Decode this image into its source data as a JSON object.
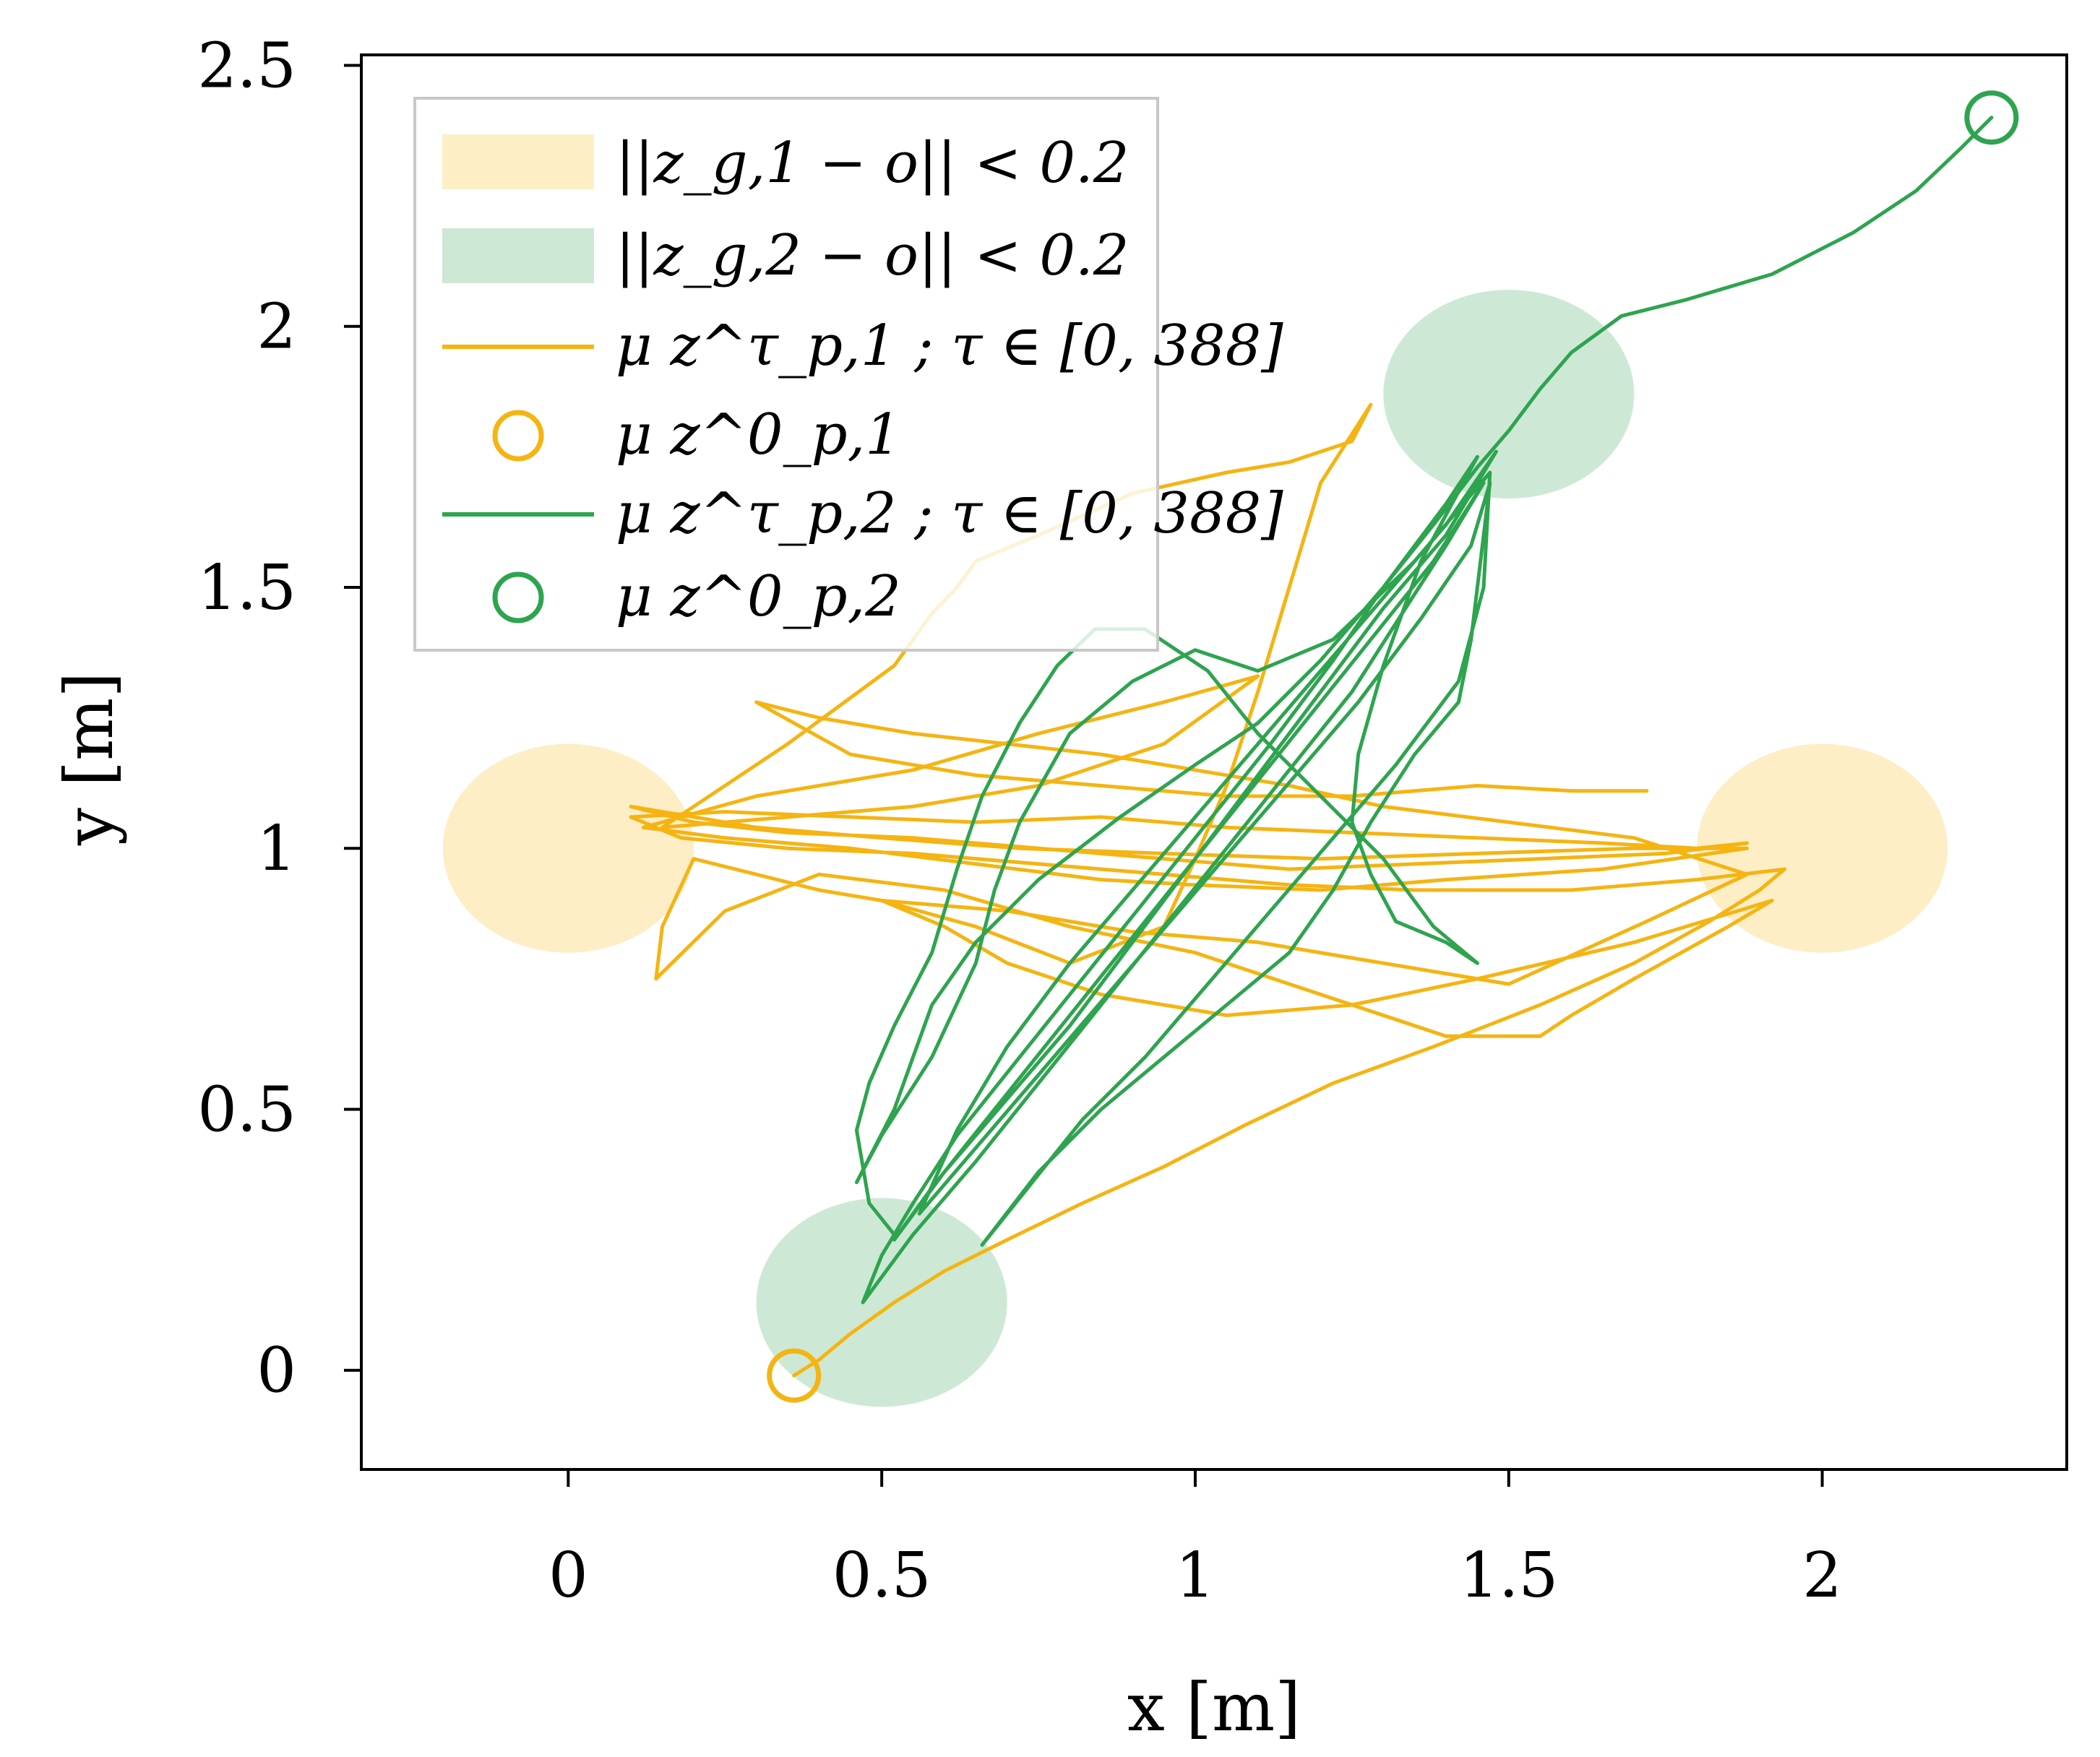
{
  "chart_data": {
    "type": "scatter",
    "title": "",
    "xlabel": "x [m]",
    "ylabel": "y [m]",
    "xlim": [
      -0.33,
      2.39
    ],
    "ylim": [
      -0.19,
      2.52
    ],
    "xticks": [
      0,
      0.5,
      1,
      1.5,
      2
    ],
    "xtick_labels": [
      "0",
      "0.5",
      "1",
      "1.5",
      "2"
    ],
    "yticks": [
      0,
      0.5,
      1,
      1.5,
      2,
      2.5
    ],
    "ytick_labels": [
      "0",
      "0.5",
      "1",
      "1.5",
      "2",
      "2.5"
    ],
    "grid": false,
    "legend_position": "top-left",
    "colors": {
      "orange": "#f5b412",
      "green": "#2ea44f",
      "orange_fill": "#fdeec6",
      "green_fill": "#cde9d5"
    },
    "regions": [
      {
        "name": "goal-region-1-left",
        "group": "orange",
        "center": [
          0.0,
          1.0
        ],
        "radius": 0.2
      },
      {
        "name": "goal-region-1-right",
        "group": "orange",
        "center": [
          2.0,
          1.0
        ],
        "radius": 0.2
      },
      {
        "name": "goal-region-2-bottom",
        "group": "green",
        "center": [
          0.5,
          0.13
        ],
        "radius": 0.2
      },
      {
        "name": "goal-region-2-top",
        "group": "green",
        "center": [
          1.5,
          1.87
        ],
        "radius": 0.2
      }
    ],
    "start_points": [
      {
        "name": "orange-start-marker",
        "group": "orange",
        "x": 0.36,
        "y": -0.01
      },
      {
        "name": "green-start-marker",
        "group": "green",
        "x": 2.27,
        "y": 2.4
      }
    ],
    "series": [
      {
        "name": "orange-trajectory-path",
        "group": "orange",
        "points": [
          [
            0.36,
            -0.01
          ],
          [
            0.4,
            0.02
          ],
          [
            0.45,
            0.07
          ],
          [
            0.52,
            0.13
          ],
          [
            0.6,
            0.19
          ],
          [
            0.7,
            0.25
          ],
          [
            0.82,
            0.32
          ],
          [
            0.95,
            0.39
          ],
          [
            1.08,
            0.47
          ],
          [
            1.22,
            0.55
          ],
          [
            1.38,
            0.62
          ],
          [
            1.55,
            0.7
          ],
          [
            1.7,
            0.78
          ],
          [
            1.82,
            0.86
          ],
          [
            1.9,
            0.92
          ],
          [
            1.94,
            0.96
          ],
          [
            1.8,
            0.94
          ],
          [
            1.6,
            0.92
          ],
          [
            1.35,
            0.92
          ],
          [
            1.15,
            0.93
          ],
          [
            0.95,
            0.95
          ],
          [
            0.75,
            0.97
          ],
          [
            0.55,
            0.99
          ],
          [
            0.35,
            1.0
          ],
          [
            0.18,
            1.02
          ],
          [
            0.1,
            1.06
          ],
          [
            0.25,
            1.07
          ],
          [
            0.45,
            1.06
          ],
          [
            0.65,
            1.05
          ],
          [
            0.85,
            1.06
          ],
          [
            1.05,
            1.04
          ],
          [
            1.25,
            1.03
          ],
          [
            1.45,
            1.02
          ],
          [
            1.65,
            1.01
          ],
          [
            1.8,
            1.0
          ],
          [
            1.88,
            1.01
          ],
          [
            1.75,
            0.99
          ],
          [
            1.55,
            0.98
          ],
          [
            1.35,
            0.97
          ],
          [
            1.15,
            0.96
          ],
          [
            0.95,
            0.98
          ],
          [
            0.75,
            1.0
          ],
          [
            0.55,
            1.02
          ],
          [
            0.35,
            1.03
          ],
          [
            0.2,
            1.05
          ],
          [
            0.1,
            1.08
          ],
          [
            0.3,
            1.04
          ],
          [
            0.5,
            1.02
          ],
          [
            0.72,
            1.0
          ],
          [
            0.95,
            0.99
          ],
          [
            1.2,
            0.98
          ],
          [
            1.45,
            0.99
          ],
          [
            1.7,
            1.0
          ],
          [
            1.88,
            1.0
          ],
          [
            1.65,
            0.96
          ],
          [
            1.4,
            0.94
          ],
          [
            1.2,
            0.92
          ],
          [
            1.0,
            0.93
          ],
          [
            0.85,
            0.94
          ],
          [
            0.65,
            0.97
          ],
          [
            0.45,
            1.0
          ],
          [
            0.25,
            1.02
          ],
          [
            0.12,
            1.04
          ],
          [
            0.3,
            1.1
          ],
          [
            0.55,
            1.15
          ],
          [
            0.75,
            1.22
          ],
          [
            0.95,
            1.28
          ],
          [
            1.1,
            1.33
          ],
          [
            0.95,
            1.2
          ],
          [
            0.75,
            1.12
          ],
          [
            0.55,
            1.08
          ],
          [
            0.35,
            1.06
          ],
          [
            0.15,
            1.04
          ],
          [
            0.35,
            1.2
          ],
          [
            0.52,
            1.35
          ],
          [
            0.58,
            1.45
          ],
          [
            0.62,
            1.5
          ],
          [
            0.65,
            1.55
          ],
          [
            0.75,
            1.6
          ],
          [
            0.9,
            1.68
          ],
          [
            1.05,
            1.72
          ],
          [
            1.15,
            1.74
          ],
          [
            1.25,
            1.78
          ],
          [
            1.28,
            1.85
          ],
          [
            1.2,
            1.7
          ],
          [
            1.15,
            1.5
          ],
          [
            1.1,
            1.3
          ],
          [
            1.05,
            1.12
          ],
          [
            1.0,
            0.98
          ],
          [
            0.95,
            0.85
          ],
          [
            0.8,
            0.78
          ],
          [
            0.65,
            0.85
          ],
          [
            0.5,
            0.9
          ],
          [
            0.4,
            0.92
          ],
          [
            0.3,
            0.95
          ],
          [
            0.2,
            0.98
          ],
          [
            0.15,
            0.85
          ],
          [
            0.14,
            0.75
          ],
          [
            0.25,
            0.88
          ],
          [
            0.4,
            0.95
          ],
          [
            0.6,
            0.92
          ],
          [
            0.8,
            0.85
          ],
          [
            1.0,
            0.8
          ],
          [
            1.2,
            0.72
          ],
          [
            1.4,
            0.64
          ],
          [
            1.55,
            0.64
          ],
          [
            1.6,
            0.68
          ],
          [
            1.7,
            0.75
          ],
          [
            1.85,
            0.85
          ],
          [
            1.92,
            0.9
          ],
          [
            1.7,
            0.82
          ],
          [
            1.45,
            0.75
          ],
          [
            1.25,
            0.7
          ],
          [
            1.05,
            0.68
          ],
          [
            0.85,
            0.72
          ],
          [
            0.7,
            0.78
          ],
          [
            0.6,
            0.85
          ],
          [
            0.5,
            0.9
          ],
          [
            0.7,
            0.88
          ],
          [
            0.9,
            0.84
          ],
          [
            1.1,
            0.82
          ],
          [
            1.3,
            0.78
          ],
          [
            1.5,
            0.74
          ],
          [
            1.72,
            0.86
          ],
          [
            1.88,
            0.95
          ],
          [
            1.7,
            1.02
          ],
          [
            1.5,
            1.05
          ],
          [
            1.3,
            1.08
          ],
          [
            1.15,
            1.12
          ],
          [
            1.0,
            1.15
          ],
          [
            0.85,
            1.18
          ],
          [
            0.7,
            1.2
          ],
          [
            0.55,
            1.22
          ],
          [
            0.4,
            1.25
          ],
          [
            0.3,
            1.28
          ],
          [
            0.45,
            1.18
          ],
          [
            0.65,
            1.14
          ],
          [
            0.85,
            1.12
          ],
          [
            1.05,
            1.1
          ],
          [
            1.25,
            1.1
          ],
          [
            1.45,
            1.12
          ],
          [
            1.6,
            1.11
          ],
          [
            1.72,
            1.11
          ]
        ]
      },
      {
        "name": "green-trajectory-path",
        "group": "green",
        "points": [
          [
            2.27,
            2.4
          ],
          [
            2.22,
            2.34
          ],
          [
            2.15,
            2.26
          ],
          [
            2.05,
            2.18
          ],
          [
            1.92,
            2.1
          ],
          [
            1.78,
            2.05
          ],
          [
            1.68,
            2.02
          ],
          [
            1.6,
            1.95
          ],
          [
            1.55,
            1.88
          ],
          [
            1.5,
            1.8
          ],
          [
            1.45,
            1.73
          ],
          [
            1.38,
            1.62
          ],
          [
            1.3,
            1.5
          ],
          [
            1.22,
            1.36
          ],
          [
            1.12,
            1.2
          ],
          [
            1.02,
            1.05
          ],
          [
            0.92,
            0.9
          ],
          [
            0.82,
            0.75
          ],
          [
            0.72,
            0.6
          ],
          [
            0.62,
            0.45
          ],
          [
            0.55,
            0.32
          ],
          [
            0.5,
            0.22
          ],
          [
            0.47,
            0.13
          ],
          [
            0.55,
            0.26
          ],
          [
            0.65,
            0.4
          ],
          [
            0.75,
            0.55
          ],
          [
            0.85,
            0.7
          ],
          [
            0.95,
            0.85
          ],
          [
            1.05,
            1.0
          ],
          [
            1.15,
            1.15
          ],
          [
            1.25,
            1.3
          ],
          [
            1.33,
            1.45
          ],
          [
            1.4,
            1.58
          ],
          [
            1.46,
            1.7
          ],
          [
            1.38,
            1.55
          ],
          [
            1.28,
            1.4
          ],
          [
            1.18,
            1.25
          ],
          [
            1.08,
            1.1
          ],
          [
            0.98,
            0.95
          ],
          [
            0.88,
            0.8
          ],
          [
            0.78,
            0.65
          ],
          [
            0.68,
            0.5
          ],
          [
            0.58,
            0.35
          ],
          [
            0.52,
            0.25
          ],
          [
            0.6,
            0.38
          ],
          [
            0.7,
            0.52
          ],
          [
            0.8,
            0.66
          ],
          [
            0.9,
            0.82
          ],
          [
            1.0,
            0.98
          ],
          [
            1.1,
            1.14
          ],
          [
            1.2,
            1.3
          ],
          [
            1.3,
            1.46
          ],
          [
            1.4,
            1.6
          ],
          [
            1.48,
            1.76
          ],
          [
            1.4,
            1.62
          ],
          [
            1.3,
            1.48
          ],
          [
            1.2,
            1.34
          ],
          [
            1.1,
            1.2
          ],
          [
            1.0,
            1.06
          ],
          [
            0.9,
            0.92
          ],
          [
            0.8,
            0.78
          ],
          [
            0.7,
            0.62
          ],
          [
            0.62,
            0.46
          ],
          [
            0.56,
            0.3
          ],
          [
            0.66,
            0.44
          ],
          [
            0.76,
            0.58
          ],
          [
            0.86,
            0.72
          ],
          [
            0.96,
            0.86
          ],
          [
            1.06,
            1.0
          ],
          [
            1.16,
            1.14
          ],
          [
            1.26,
            1.28
          ],
          [
            1.36,
            1.44
          ],
          [
            1.44,
            1.58
          ],
          [
            1.47,
            1.7
          ],
          [
            1.44,
            1.4
          ],
          [
            1.42,
            1.28
          ],
          [
            1.35,
            1.18
          ],
          [
            1.28,
            1.05
          ],
          [
            1.22,
            0.92
          ],
          [
            1.15,
            0.8
          ],
          [
            1.05,
            0.7
          ],
          [
            0.95,
            0.6
          ],
          [
            0.85,
            0.5
          ],
          [
            0.75,
            0.38
          ],
          [
            0.66,
            0.24
          ],
          [
            0.74,
            0.36
          ],
          [
            0.82,
            0.48
          ],
          [
            0.92,
            0.6
          ],
          [
            1.02,
            0.74
          ],
          [
            1.12,
            0.88
          ],
          [
            1.22,
            1.02
          ],
          [
            1.32,
            1.16
          ],
          [
            1.42,
            1.32
          ],
          [
            1.46,
            1.5
          ],
          [
            1.47,
            1.72
          ],
          [
            1.35,
            1.55
          ],
          [
            1.22,
            1.4
          ],
          [
            1.1,
            1.34
          ],
          [
            1.0,
            1.38
          ],
          [
            0.9,
            1.32
          ],
          [
            0.8,
            1.22
          ],
          [
            0.72,
            1.05
          ],
          [
            0.68,
            0.92
          ],
          [
            0.65,
            0.78
          ],
          [
            0.58,
            0.6
          ],
          [
            0.5,
            0.45
          ],
          [
            0.46,
            0.36
          ],
          [
            0.52,
            0.5
          ],
          [
            0.55,
            0.6
          ],
          [
            0.58,
            0.7
          ],
          [
            0.65,
            0.82
          ],
          [
            0.75,
            0.94
          ],
          [
            0.88,
            1.06
          ],
          [
            1.0,
            1.16
          ],
          [
            1.1,
            1.24
          ],
          [
            1.2,
            1.36
          ],
          [
            1.3,
            1.5
          ],
          [
            1.4,
            1.66
          ],
          [
            1.45,
            1.75
          ],
          [
            1.36,
            1.55
          ],
          [
            1.3,
            1.35
          ],
          [
            1.26,
            1.18
          ],
          [
            1.25,
            1.05
          ],
          [
            1.28,
            0.95
          ],
          [
            1.32,
            0.86
          ],
          [
            1.4,
            0.82
          ],
          [
            1.45,
            0.78
          ],
          [
            1.38,
            0.85
          ],
          [
            1.3,
            0.98
          ],
          [
            1.2,
            1.1
          ],
          [
            1.1,
            1.22
          ],
          [
            1.02,
            1.34
          ],
          [
            0.92,
            1.42
          ],
          [
            0.84,
            1.42
          ],
          [
            0.78,
            1.35
          ],
          [
            0.72,
            1.24
          ],
          [
            0.66,
            1.1
          ],
          [
            0.62,
            0.96
          ],
          [
            0.58,
            0.8
          ],
          [
            0.52,
            0.66
          ],
          [
            0.48,
            0.55
          ],
          [
            0.46,
            0.46
          ],
          [
            0.48,
            0.32
          ],
          [
            0.52,
            0.26
          ]
        ]
      }
    ],
    "legend": [
      {
        "kind": "patch",
        "group": "orange",
        "label": "||z_g,1 − o|| < 0.2"
      },
      {
        "kind": "patch",
        "group": "green",
        "label": "||z_g,2 − o|| < 0.2"
      },
      {
        "kind": "line",
        "group": "orange",
        "label": "μ z^τ_p,1 ; τ ∈ [0, 388]"
      },
      {
        "kind": "marker",
        "group": "orange",
        "label": "μ z^0_p,1"
      },
      {
        "kind": "line",
        "group": "green",
        "label": "μ z^τ_p,2 ; τ ∈ [0, 388]"
      },
      {
        "kind": "marker",
        "group": "green",
        "label": "μ z^0_p,2"
      }
    ]
  }
}
